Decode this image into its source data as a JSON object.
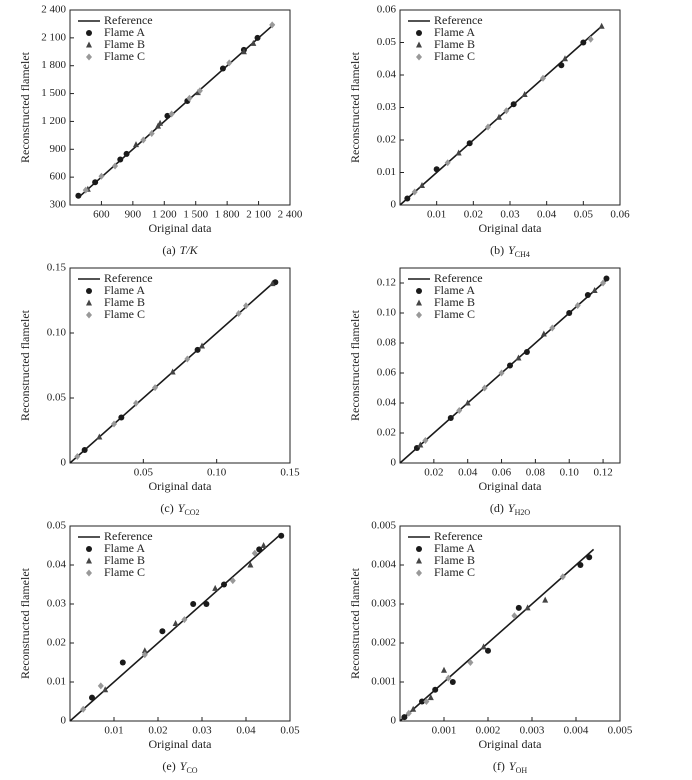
{
  "chart_data": [
    {
      "type": "scatter",
      "caption": "(a)",
      "caption_var": "T/K",
      "xlabel": "Original data",
      "ylabel": "Reconstructed flamelet",
      "xlim": [
        300,
        2400
      ],
      "ylim": [
        300,
        2400
      ],
      "xticks": [
        600,
        900,
        {
          "value": 1200,
          "label": "1 200"
        },
        {
          "value": 1500,
          "label": "1 500"
        },
        {
          "value": 1800,
          "label": "1 800"
        },
        {
          "value": 2100,
          "label": "2 100"
        },
        {
          "value": 2400,
          "label": "2 400"
        }
      ],
      "yticks": [
        300,
        600,
        900,
        {
          "value": 1200,
          "label": "1 200"
        },
        {
          "value": 1500,
          "label": "1 500"
        },
        {
          "value": 1800,
          "label": "1 800"
        },
        {
          "value": 2100,
          "label": "2 100"
        },
        {
          "value": 2400,
          "label": "2 400"
        }
      ],
      "legend": "upper left",
      "series": [
        {
          "name": "Reference",
          "marker": "line",
          "color": "#1a1a1a",
          "x": [
            380,
            2250
          ],
          "values": [
            380,
            2250
          ]
        },
        {
          "name": "Flame A",
          "marker": "circle",
          "color": "#1a1a1a",
          "x": [
            380,
            540,
            780,
            840,
            1230,
            1420,
            1760,
            1960,
            2090
          ],
          "values": [
            400,
            545,
            790,
            850,
            1260,
            1420,
            1770,
            1970,
            2100
          ]
        },
        {
          "name": "Flame B",
          "marker": "triangle",
          "color": "#444444",
          "x": [
            470,
            930,
            1140,
            1160,
            1520,
            1960,
            2050
          ],
          "values": [
            470,
            950,
            1150,
            1180,
            1510,
            1950,
            2040
          ]
        },
        {
          "name": "Flame C",
          "marker": "diamond",
          "color": "#999999",
          "x": [
            450,
            600,
            730,
            1000,
            1080,
            1270,
            1440,
            1540,
            1820,
            2230
          ],
          "values": [
            460,
            610,
            720,
            1000,
            1070,
            1280,
            1450,
            1530,
            1830,
            2240
          ]
        }
      ]
    },
    {
      "type": "scatter",
      "caption": "(b)",
      "caption_var": "Y",
      "caption_sub": "CH4",
      "xlabel": "Original data",
      "ylabel": "Reconstructed flamelet",
      "xlim": [
        0,
        0.06
      ],
      "ylim": [
        0,
        0.06
      ],
      "xticks": [
        0.01,
        0.02,
        0.03,
        0.04,
        0.05,
        0.06
      ],
      "yticks": [
        0,
        0.01,
        0.02,
        0.03,
        0.04,
        0.05,
        0.06
      ],
      "legend": "upper left",
      "series": [
        {
          "name": "Reference",
          "marker": "line",
          "color": "#1a1a1a",
          "x": [
            0,
            0.055
          ],
          "values": [
            0,
            0.055
          ]
        },
        {
          "name": "Flame A",
          "marker": "circle",
          "color": "#1a1a1a",
          "x": [
            0.002,
            0.01,
            0.019,
            0.031,
            0.044,
            0.05
          ],
          "values": [
            0.002,
            0.011,
            0.019,
            0.031,
            0.043,
            0.05
          ]
        },
        {
          "name": "Flame B",
          "marker": "triangle",
          "color": "#444444",
          "x": [
            0.006,
            0.016,
            0.027,
            0.034,
            0.045,
            0.055
          ],
          "values": [
            0.006,
            0.016,
            0.027,
            0.034,
            0.045,
            0.055
          ]
        },
        {
          "name": "Flame C",
          "marker": "diamond",
          "color": "#999999",
          "x": [
            0.004,
            0.013,
            0.024,
            0.029,
            0.039,
            0.052
          ],
          "values": [
            0.004,
            0.013,
            0.024,
            0.029,
            0.039,
            0.051
          ]
        }
      ]
    },
    {
      "type": "scatter",
      "caption": "(c)",
      "caption_var": "Y",
      "caption_sub": "CO2",
      "xlabel": "Original data",
      "ylabel": "Reconstructed flamelet",
      "xlim": [
        0,
        0.15
      ],
      "ylim": [
        0,
        0.15
      ],
      "xticks": [
        0.05,
        {
          "value": 0.1,
          "label": "0.10"
        },
        0.15
      ],
      "yticks": [
        0,
        0.05,
        {
          "value": 0.1,
          "label": "0.10"
        },
        0.15
      ],
      "legend": "upper left",
      "series": [
        {
          "name": "Reference",
          "marker": "line",
          "color": "#1a1a1a",
          "x": [
            0,
            0.14
          ],
          "values": [
            0,
            0.14
          ]
        },
        {
          "name": "Flame A",
          "marker": "circle",
          "color": "#1a1a1a",
          "x": [
            0.01,
            0.035,
            0.087,
            0.14
          ],
          "values": [
            0.01,
            0.035,
            0.087,
            0.139
          ]
        },
        {
          "name": "Flame B",
          "marker": "triangle",
          "color": "#444444",
          "x": [
            0.02,
            0.07,
            0.09,
            0.138
          ],
          "values": [
            0.02,
            0.07,
            0.09,
            0.138
          ]
        },
        {
          "name": "Flame C",
          "marker": "diamond",
          "color": "#999999",
          "x": [
            0.005,
            0.03,
            0.045,
            0.058,
            0.08,
            0.115,
            0.12
          ],
          "values": [
            0.005,
            0.03,
            0.046,
            0.058,
            0.08,
            0.115,
            0.121
          ]
        }
      ]
    },
    {
      "type": "scatter",
      "caption": "(d)",
      "caption_var": "Y",
      "caption_sub": "H2O",
      "xlabel": "Original data",
      "ylabel": "Reconstructed flamelet",
      "xlim": [
        0,
        0.13
      ],
      "ylim": [
        0,
        0.13
      ],
      "xticks": [
        0.02,
        0.04,
        0.06,
        0.08,
        {
          "value": 0.1,
          "label": "0.10"
        },
        0.12
      ],
      "yticks": [
        0,
        0.02,
        0.04,
        0.06,
        0.08,
        {
          "value": 0.1,
          "label": "0.10"
        },
        0.12
      ],
      "legend": "upper left",
      "series": [
        {
          "name": "Reference",
          "marker": "line",
          "color": "#1a1a1a",
          "x": [
            0,
            0.122
          ],
          "values": [
            0,
            0.122
          ]
        },
        {
          "name": "Flame A",
          "marker": "circle",
          "color": "#1a1a1a",
          "x": [
            0.01,
            0.03,
            0.065,
            0.075,
            0.1,
            0.111,
            0.122
          ],
          "values": [
            0.01,
            0.03,
            0.065,
            0.074,
            0.1,
            0.112,
            0.123
          ]
        },
        {
          "name": "Flame B",
          "marker": "triangle",
          "color": "#444444",
          "x": [
            0.012,
            0.04,
            0.07,
            0.085,
            0.115
          ],
          "values": [
            0.012,
            0.04,
            0.07,
            0.086,
            0.115
          ]
        },
        {
          "name": "Flame C",
          "marker": "diamond",
          "color": "#999999",
          "x": [
            0.015,
            0.035,
            0.05,
            0.06,
            0.09,
            0.105,
            0.12
          ],
          "values": [
            0.015,
            0.035,
            0.05,
            0.06,
            0.09,
            0.105,
            0.12
          ]
        }
      ]
    },
    {
      "type": "scatter",
      "caption": "(e)",
      "caption_var": "Y",
      "caption_sub": "CO",
      "xlabel": "Original data",
      "ylabel": "Reconstructed flamelet",
      "xlim": [
        0,
        0.05
      ],
      "ylim": [
        0,
        0.05
      ],
      "xticks": [
        0.01,
        0.02,
        0.03,
        0.04,
        0.05
      ],
      "yticks": [
        0,
        0.01,
        0.02,
        0.03,
        0.04,
        0.05
      ],
      "legend": "upper left",
      "series": [
        {
          "name": "Reference",
          "marker": "line",
          "color": "#1a1a1a",
          "x": [
            0,
            0.048
          ],
          "values": [
            0,
            0.048
          ]
        },
        {
          "name": "Flame A",
          "marker": "circle",
          "color": "#1a1a1a",
          "x": [
            0.005,
            0.012,
            0.021,
            0.028,
            0.031,
            0.035,
            0.043,
            0.048
          ],
          "values": [
            0.006,
            0.015,
            0.023,
            0.03,
            0.03,
            0.035,
            0.044,
            0.0475
          ]
        },
        {
          "name": "Flame B",
          "marker": "triangle",
          "color": "#444444",
          "x": [
            0.008,
            0.017,
            0.024,
            0.033,
            0.041,
            0.044
          ],
          "values": [
            0.008,
            0.018,
            0.025,
            0.034,
            0.04,
            0.045
          ]
        },
        {
          "name": "Flame C",
          "marker": "diamond",
          "color": "#999999",
          "x": [
            0.003,
            0.007,
            0.017,
            0.026,
            0.037,
            0.042
          ],
          "values": [
            0.003,
            0.009,
            0.017,
            0.026,
            0.036,
            0.043
          ]
        }
      ]
    },
    {
      "type": "scatter",
      "caption": "(f)",
      "caption_var": "Y",
      "caption_sub": "OH",
      "xlabel": "Original data",
      "ylabel": "Reconstructed flamelet",
      "xlim": [
        0,
        0.005
      ],
      "ylim": [
        0,
        0.005
      ],
      "xticks": [
        0.001,
        0.002,
        0.003,
        0.004,
        0.005
      ],
      "yticks": [
        0,
        0.001,
        0.002,
        0.003,
        0.004,
        0.005
      ],
      "legend": "upper left",
      "series": [
        {
          "name": "Reference",
          "marker": "line",
          "color": "#1a1a1a",
          "x": [
            0,
            0.0044
          ],
          "values": [
            0,
            0.0044
          ]
        },
        {
          "name": "Flame A",
          "marker": "circle",
          "color": "#1a1a1a",
          "x": [
            0.0001,
            0.0005,
            0.0008,
            0.0012,
            0.002,
            0.0027,
            0.0041,
            0.0043
          ],
          "values": [
            0.0001,
            0.0005,
            0.0008,
            0.001,
            0.0018,
            0.0029,
            0.004,
            0.0042
          ]
        },
        {
          "name": "Flame B",
          "marker": "triangle",
          "color": "#444444",
          "x": [
            0.0003,
            0.0007,
            0.001,
            0.0019,
            0.0029,
            0.0033
          ],
          "values": [
            0.0003,
            0.0006,
            0.0013,
            0.0019,
            0.0029,
            0.0031
          ]
        },
        {
          "name": "Flame C",
          "marker": "diamond",
          "color": "#999999",
          "x": [
            0.0002,
            0.0006,
            0.0011,
            0.0016,
            0.0026,
            0.0037
          ],
          "values": [
            0.0002,
            0.0005,
            0.0011,
            0.0015,
            0.0027,
            0.0037
          ]
        }
      ]
    }
  ]
}
